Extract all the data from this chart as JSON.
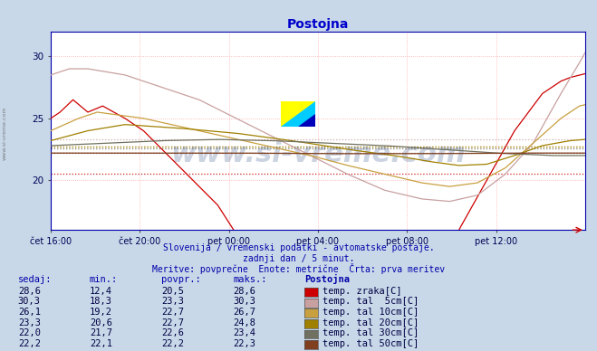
{
  "title": "Postojna",
  "title_color": "#0000cc",
  "bg_color": "#c8d8e8",
  "plot_bg_color": "#ffffff",
  "grid_color": "#ffaaaa",
  "text_color": "#0000aa",
  "watermark": "www.si-vreme.com",
  "subtitle1": "Slovenija / vremenski podatki - avtomatske postaje.",
  "subtitle2": "zadnji dan / 5 minut.",
  "subtitle3": "Meritve: povprečne  Enote: metrične  Črta: prva meritev",
  "xtick_labels": [
    "čet 16:00",
    "čet 20:00",
    "pet 00:00",
    "pet 04:00",
    "pet 08:00",
    "pet 12:00"
  ],
  "ytick_labels": [
    "20",
    "25",
    "30"
  ],
  "ylim": [
    16.0,
    32.0
  ],
  "xlim": [
    0,
    288
  ],
  "xtick_positions": [
    0,
    48,
    96,
    144,
    192,
    240
  ],
  "ytick_positions": [
    20,
    25,
    30
  ],
  "legend_colors": {
    "temp_zraka": "#cc0000",
    "temp_tal_5cm": "#c8a0a0",
    "temp_tal_10cm": "#c8a040",
    "temp_tal_20cm": "#a08000",
    "temp_tal_30cm": "#707060",
    "temp_tal_50cm": "#804020"
  },
  "povpr_vals": [
    20.5,
    23.3,
    22.7,
    22.7,
    22.6,
    22.2
  ],
  "table_header": [
    "sedaj:",
    "min.:",
    "povpr.:",
    "maks.:",
    "Postojna"
  ],
  "table_data": [
    [
      "28,6",
      "12,4",
      "20,5",
      "28,6",
      "temp. zraka[C]"
    ],
    [
      "30,3",
      "18,3",
      "23,3",
      "30,3",
      "temp. tal  5cm[C]"
    ],
    [
      "26,1",
      "19,2",
      "22,7",
      "26,7",
      "temp. tal 10cm[C]"
    ],
    [
      "23,3",
      "20,6",
      "22,7",
      "24,8",
      "temp. tal 20cm[C]"
    ],
    [
      "22,0",
      "21,7",
      "22,6",
      "23,4",
      "temp. tal 30cm[C]"
    ],
    [
      "22,2",
      "22,1",
      "22,2",
      "22,3",
      "temp. tal 50cm[C]"
    ]
  ]
}
